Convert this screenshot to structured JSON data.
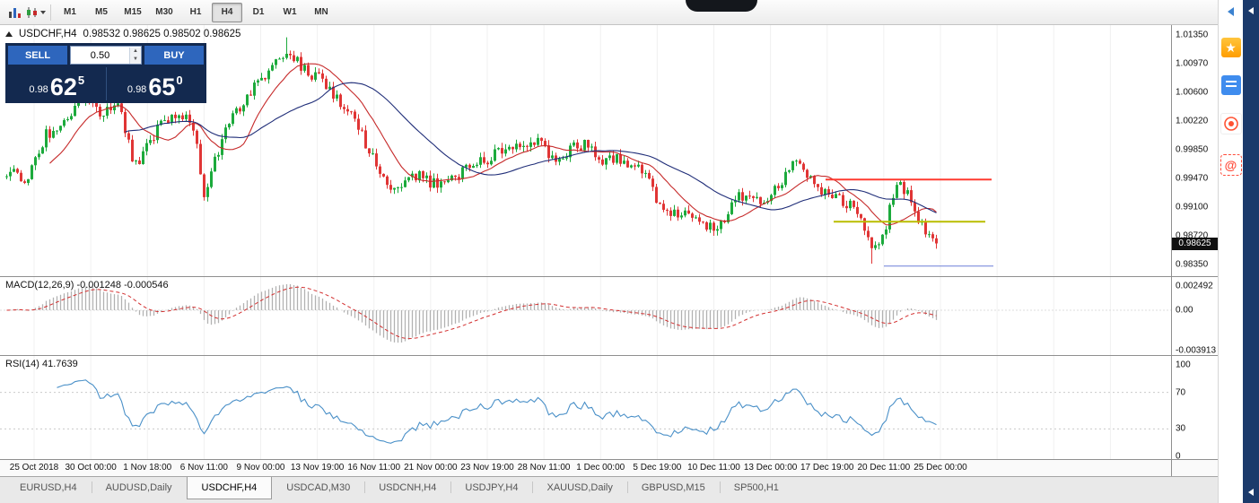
{
  "window": {
    "toolbar": {
      "timeframes": [
        "M1",
        "M5",
        "M15",
        "M30",
        "H1",
        "H4",
        "D1",
        "W1",
        "MN"
      ],
      "active_timeframe": "H4"
    },
    "tabs": [
      {
        "label": "EURUSD,H4",
        "active": false
      },
      {
        "label": "AUDUSD,Daily",
        "active": false
      },
      {
        "label": "USDCHF,H4",
        "active": true
      },
      {
        "label": "USDCAD,M30",
        "active": false
      },
      {
        "label": "USDCNH,H4",
        "active": false
      },
      {
        "label": "USDJPY,H4",
        "active": false
      },
      {
        "label": "XAUUSD,Daily",
        "active": false
      },
      {
        "label": "GBPUSD,M15",
        "active": false
      },
      {
        "label": "SP500,H1",
        "active": false
      }
    ],
    "sidebar": {
      "at_symbol": "@"
    }
  },
  "icons": {
    "star": "★",
    "spin_up": "▲",
    "spin_down": "▼"
  },
  "chart": {
    "symbol_title": "USDCHF,H4",
    "ohlc": "0.98532 0.98625 0.98502 0.98625",
    "current_price": "0.98625",
    "trade_panel": {
      "sell_label": "SELL",
      "buy_label": "BUY",
      "volume": "0.50",
      "sell_price": {
        "prefix": "0.98",
        "big": "62",
        "sup": "5"
      },
      "buy_price": {
        "prefix": "0.98",
        "big": "65",
        "sup": "0"
      }
    }
  },
  "indicators": {
    "macd_label": "MACD(12,26,9) -0.001248 -0.000546",
    "rsi_label": "RSI(14) 41.7639"
  },
  "chart_data": {
    "type": "candlestick",
    "symbol": "USDCHF",
    "timeframe": "H4",
    "last_bar": {
      "open": 0.98532,
      "high": 0.98625,
      "low": 0.98502,
      "close": 0.98625
    },
    "last_close": 0.98625,
    "price_range": {
      "max": 1.0135,
      "min": 0.9835
    },
    "price_scale_labels": [
      "1.01350",
      "1.00970",
      "1.00600",
      "1.00220",
      "0.99850",
      "0.99470",
      "0.99100",
      "0.98720",
      "0.98350"
    ],
    "candle_count": 260,
    "price_path": [
      [
        0.0,
        0.995
      ],
      [
        0.004,
        0.996
      ],
      [
        0.023,
        0.9945
      ],
      [
        0.042,
        1.0005
      ],
      [
        0.057,
        1.0015
      ],
      [
        0.081,
        1.0052
      ],
      [
        0.1,
        1.0034
      ],
      [
        0.119,
        1.0046
      ],
      [
        0.138,
        0.9964
      ],
      [
        0.158,
        1.0005
      ],
      [
        0.172,
        1.0023
      ],
      [
        0.187,
        1.0034
      ],
      [
        0.201,
        1.0017
      ],
      [
        0.213,
        0.9923
      ],
      [
        0.23,
        0.9993
      ],
      [
        0.244,
        1.0028
      ],
      [
        0.259,
        1.0058
      ],
      [
        0.273,
        1.0075
      ],
      [
        0.288,
        1.0093
      ],
      [
        0.302,
        1.0116
      ],
      [
        0.316,
        1.0093
      ],
      [
        0.331,
        1.0081
      ],
      [
        0.345,
        1.007
      ],
      [
        0.36,
        1.004
      ],
      [
        0.374,
        1.0023
      ],
      [
        0.384,
        0.9999
      ],
      [
        0.398,
        0.9964
      ],
      [
        0.413,
        0.9929
      ],
      [
        0.427,
        0.994
      ],
      [
        0.441,
        0.9952
      ],
      [
        0.456,
        0.994
      ],
      [
        0.47,
        0.9946
      ],
      [
        0.485,
        0.9952
      ],
      [
        0.499,
        0.9964
      ],
      [
        0.513,
        0.9969
      ],
      [
        0.528,
        0.9981
      ],
      [
        0.542,
        0.9993
      ],
      [
        0.557,
        0.9987
      ],
      [
        0.571,
        0.9999
      ],
      [
        0.586,
        0.9975
      ],
      [
        0.6,
        0.9981
      ],
      [
        0.614,
        0.9993
      ],
      [
        0.629,
        0.9987
      ],
      [
        0.643,
        0.9969
      ],
      [
        0.658,
        0.9975
      ],
      [
        0.672,
        0.9964
      ],
      [
        0.687,
        0.9952
      ],
      [
        0.701,
        0.9911
      ],
      [
        0.715,
        0.9899
      ],
      [
        0.73,
        0.9905
      ],
      [
        0.744,
        0.9893
      ],
      [
        0.759,
        0.9882
      ],
      [
        0.773,
        0.9899
      ],
      [
        0.788,
        0.9923
      ],
      [
        0.802,
        0.9929
      ],
      [
        0.816,
        0.9917
      ],
      [
        0.831,
        0.994
      ],
      [
        0.845,
        0.9969
      ],
      [
        0.86,
        0.9952
      ],
      [
        0.874,
        0.9935
      ],
      [
        0.888,
        0.9923
      ],
      [
        0.903,
        0.9917
      ],
      [
        0.917,
        0.9899
      ],
      [
        0.932,
        0.9847
      ],
      [
        0.946,
        0.9887
      ],
      [
        0.956,
        0.994
      ],
      [
        0.97,
        0.9929
      ],
      [
        0.985,
        0.9882
      ],
      [
        1.0,
        0.98625
      ]
    ],
    "moving_averages": [
      {
        "period": 13,
        "color": "#c62a2a"
      },
      {
        "period": 34,
        "color": "#1f2d78"
      }
    ],
    "hlines": [
      {
        "price": 0.9946,
        "x1": 0.705,
        "x2": 0.847,
        "color": "#ff3b30",
        "width": 2
      },
      {
        "price": 0.9891,
        "x1": 0.712,
        "x2": 0.841,
        "color": "#b9bd00",
        "width": 2
      },
      {
        "price": 0.9833,
        "x1": 0.755,
        "x2": 0.848,
        "color": "#6b7fd8",
        "width": 1
      }
    ],
    "macd": {
      "params": [
        12,
        26,
        9
      ],
      "values": [
        -0.001248,
        -0.000546
      ],
      "scale": [
        "0.002492",
        "0.00",
        "-0.003913"
      ],
      "histogram_color": "#b2b2b2",
      "signal_color": "#d32f2f"
    },
    "rsi": {
      "period": 14,
      "value": 41.7639,
      "scale": [
        "100",
        "70",
        "30",
        "0"
      ],
      "levels": [
        70,
        30
      ],
      "line_color": "#4a90c8"
    },
    "time_labels": [
      "25 Oct 2018",
      "30 Oct 00:00",
      "1 Nov 18:00",
      "6 Nov 11:00",
      "9 Nov 00:00",
      "13 Nov 19:00",
      "16 Nov 11:00",
      "21 Nov 00:00",
      "23 Nov 19:00",
      "28 Nov 11:00",
      "1 Dec 00:00",
      "5 Dec 19:00",
      "10 Dec 11:00",
      "13 Dec 00:00",
      "17 Dec 19:00",
      "20 Dec 11:00",
      "25 Dec 00:00"
    ]
  }
}
